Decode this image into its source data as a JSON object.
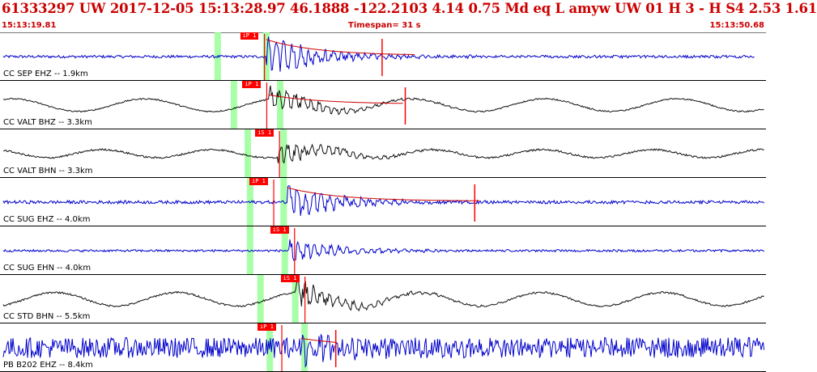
{
  "header": {
    "title": "61333297 UW 2017-12-05 15:13:28.97   46.1888 -122.2103   4.14  0.75 Md   eq   L  amyw      UW 01  H   3  -  H S4     2.53  1.61",
    "start_time": "15:13:19.81",
    "timespan": "Timespan=  31 s",
    "end_time": "15:13:50.68"
  },
  "colors": {
    "header_text": "#cc0000",
    "trace_blue": "#0000cc",
    "trace_black": "#111111",
    "pick_red": "#ff0000",
    "window_green": "#99ff99",
    "coda_red": "#cc0000"
  },
  "channels": [
    {
      "label": "CC SEP EHZ -- 1.9km",
      "color": "blue",
      "pick": "iP 1",
      "pick_time": 22.0,
      "greens": [
        18.8,
        23.0
      ],
      "onset": 23.0,
      "amp": 0.95,
      "noise": 0.06,
      "wavelen": 0,
      "wave_amp": 0,
      "coda_end": 36.0,
      "marker": 33.0,
      "trace_end": 65.2
    },
    {
      "label": "CC VALT BHZ -- 3.3km",
      "color": "black",
      "pick": "iP 1",
      "pick_time": 22.2,
      "greens": [
        20.2,
        24.2
      ],
      "onset": 23.2,
      "amp": 0.55,
      "noise": 0.03,
      "wavelen": 11.5,
      "wave_amp": 0.28,
      "coda_end": 35.0,
      "marker": 35.0,
      "trace_end": 66.0
    },
    {
      "label": "CC VALT BHN -- 3.3km",
      "color": "black",
      "pick": "iS 1",
      "pick_time": 23.3,
      "greens": [
        21.4,
        24.5
      ],
      "onset": 24.0,
      "amp": 0.55,
      "noise": 0.04,
      "wavelen": 9.5,
      "wave_amp": 0.18,
      "coda_end": 0,
      "marker": 0,
      "trace_end": 66.0
    },
    {
      "label": "CC SUG EHZ -- 4.0km",
      "color": "blue",
      "pick": "iP 1",
      "pick_time": 22.8,
      "greens": [
        21.6,
        24.5
      ],
      "onset": 24.8,
      "amp": 0.8,
      "noise": 0.07,
      "wavelen": 0,
      "wave_amp": 0,
      "coda_end": 41.5,
      "marker": 41.0,
      "trace_end": 66.0
    },
    {
      "label": "CC SUG EHN -- 4.0km",
      "color": "blue",
      "pick": "iS 1",
      "pick_time": 24.6,
      "greens": [
        21.6,
        24.6
      ],
      "onset": 24.9,
      "amp": 0.55,
      "noise": 0.05,
      "wavelen": 0,
      "wave_amp": 0,
      "coda_end": 0,
      "marker": 0,
      "trace_end": 66.0
    },
    {
      "label": "CC STD BHN -- 5.5km",
      "color": "black",
      "pick": "iS 1",
      "pick_time": 25.5,
      "greens": [
        22.5,
        25.5
      ],
      "onset": 25.5,
      "amp": 0.62,
      "noise": 0.04,
      "wavelen": 10.5,
      "wave_amp": 0.3,
      "coda_end": 0,
      "marker": 0,
      "trace_end": 66.0
    },
    {
      "label": "PB B202 EHZ -- 8.4km",
      "color": "blue",
      "pick": "iP 1",
      "pick_time": 23.5,
      "greens": [
        23.3,
        26.3
      ],
      "onset": 26.0,
      "amp": 0.5,
      "noise": 0.45,
      "wavelen": 0,
      "wave_amp": 0,
      "coda_end": 29.0,
      "marker": 29.0,
      "trace_end": 66.0
    }
  ]
}
